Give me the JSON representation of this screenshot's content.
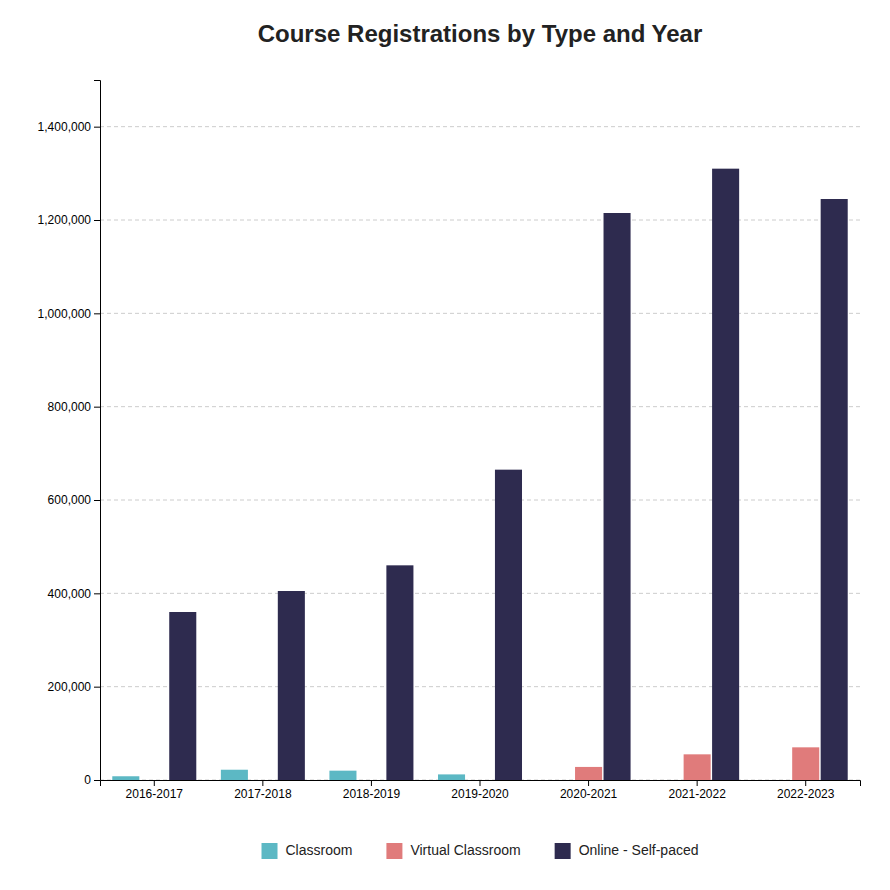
{
  "chart_data": {
    "type": "bar",
    "title": "Course Registrations by Type and Year",
    "categories": [
      "2016-2017",
      "2017-2018",
      "2018-2019",
      "2019-2020",
      "2020-2021",
      "2021-2022",
      "2022-2023"
    ],
    "series": [
      {
        "name": "Classroom",
        "color": "#5cb8c4",
        "values": [
          8000,
          22000,
          20000,
          12000,
          0,
          0,
          0
        ]
      },
      {
        "name": "Virtual Classroom",
        "color": "#e07b7b",
        "values": [
          0,
          0,
          0,
          0,
          28000,
          55000,
          70000
        ]
      },
      {
        "name": "Online - Self-paced",
        "color": "#2e2b4f",
        "values": [
          360000,
          405000,
          460000,
          665000,
          1215000,
          1310000,
          1245000
        ]
      }
    ],
    "ylim": [
      0,
      1500000
    ],
    "yticks": [
      0,
      {
        "value": 200000,
        "label": "200,000"
      },
      {
        "value": 400000,
        "label": "400,000"
      },
      {
        "value": 600000,
        "label": "600,000"
      },
      {
        "value": 800000,
        "label": "800,000"
      },
      {
        "value": 1000000,
        "label": "1,000,000"
      },
      {
        "value": 1200000,
        "label": "1,200,000"
      },
      {
        "value": 1400000,
        "label": "1,400,000"
      }
    ],
    "grid": true,
    "legend": "bottom"
  }
}
